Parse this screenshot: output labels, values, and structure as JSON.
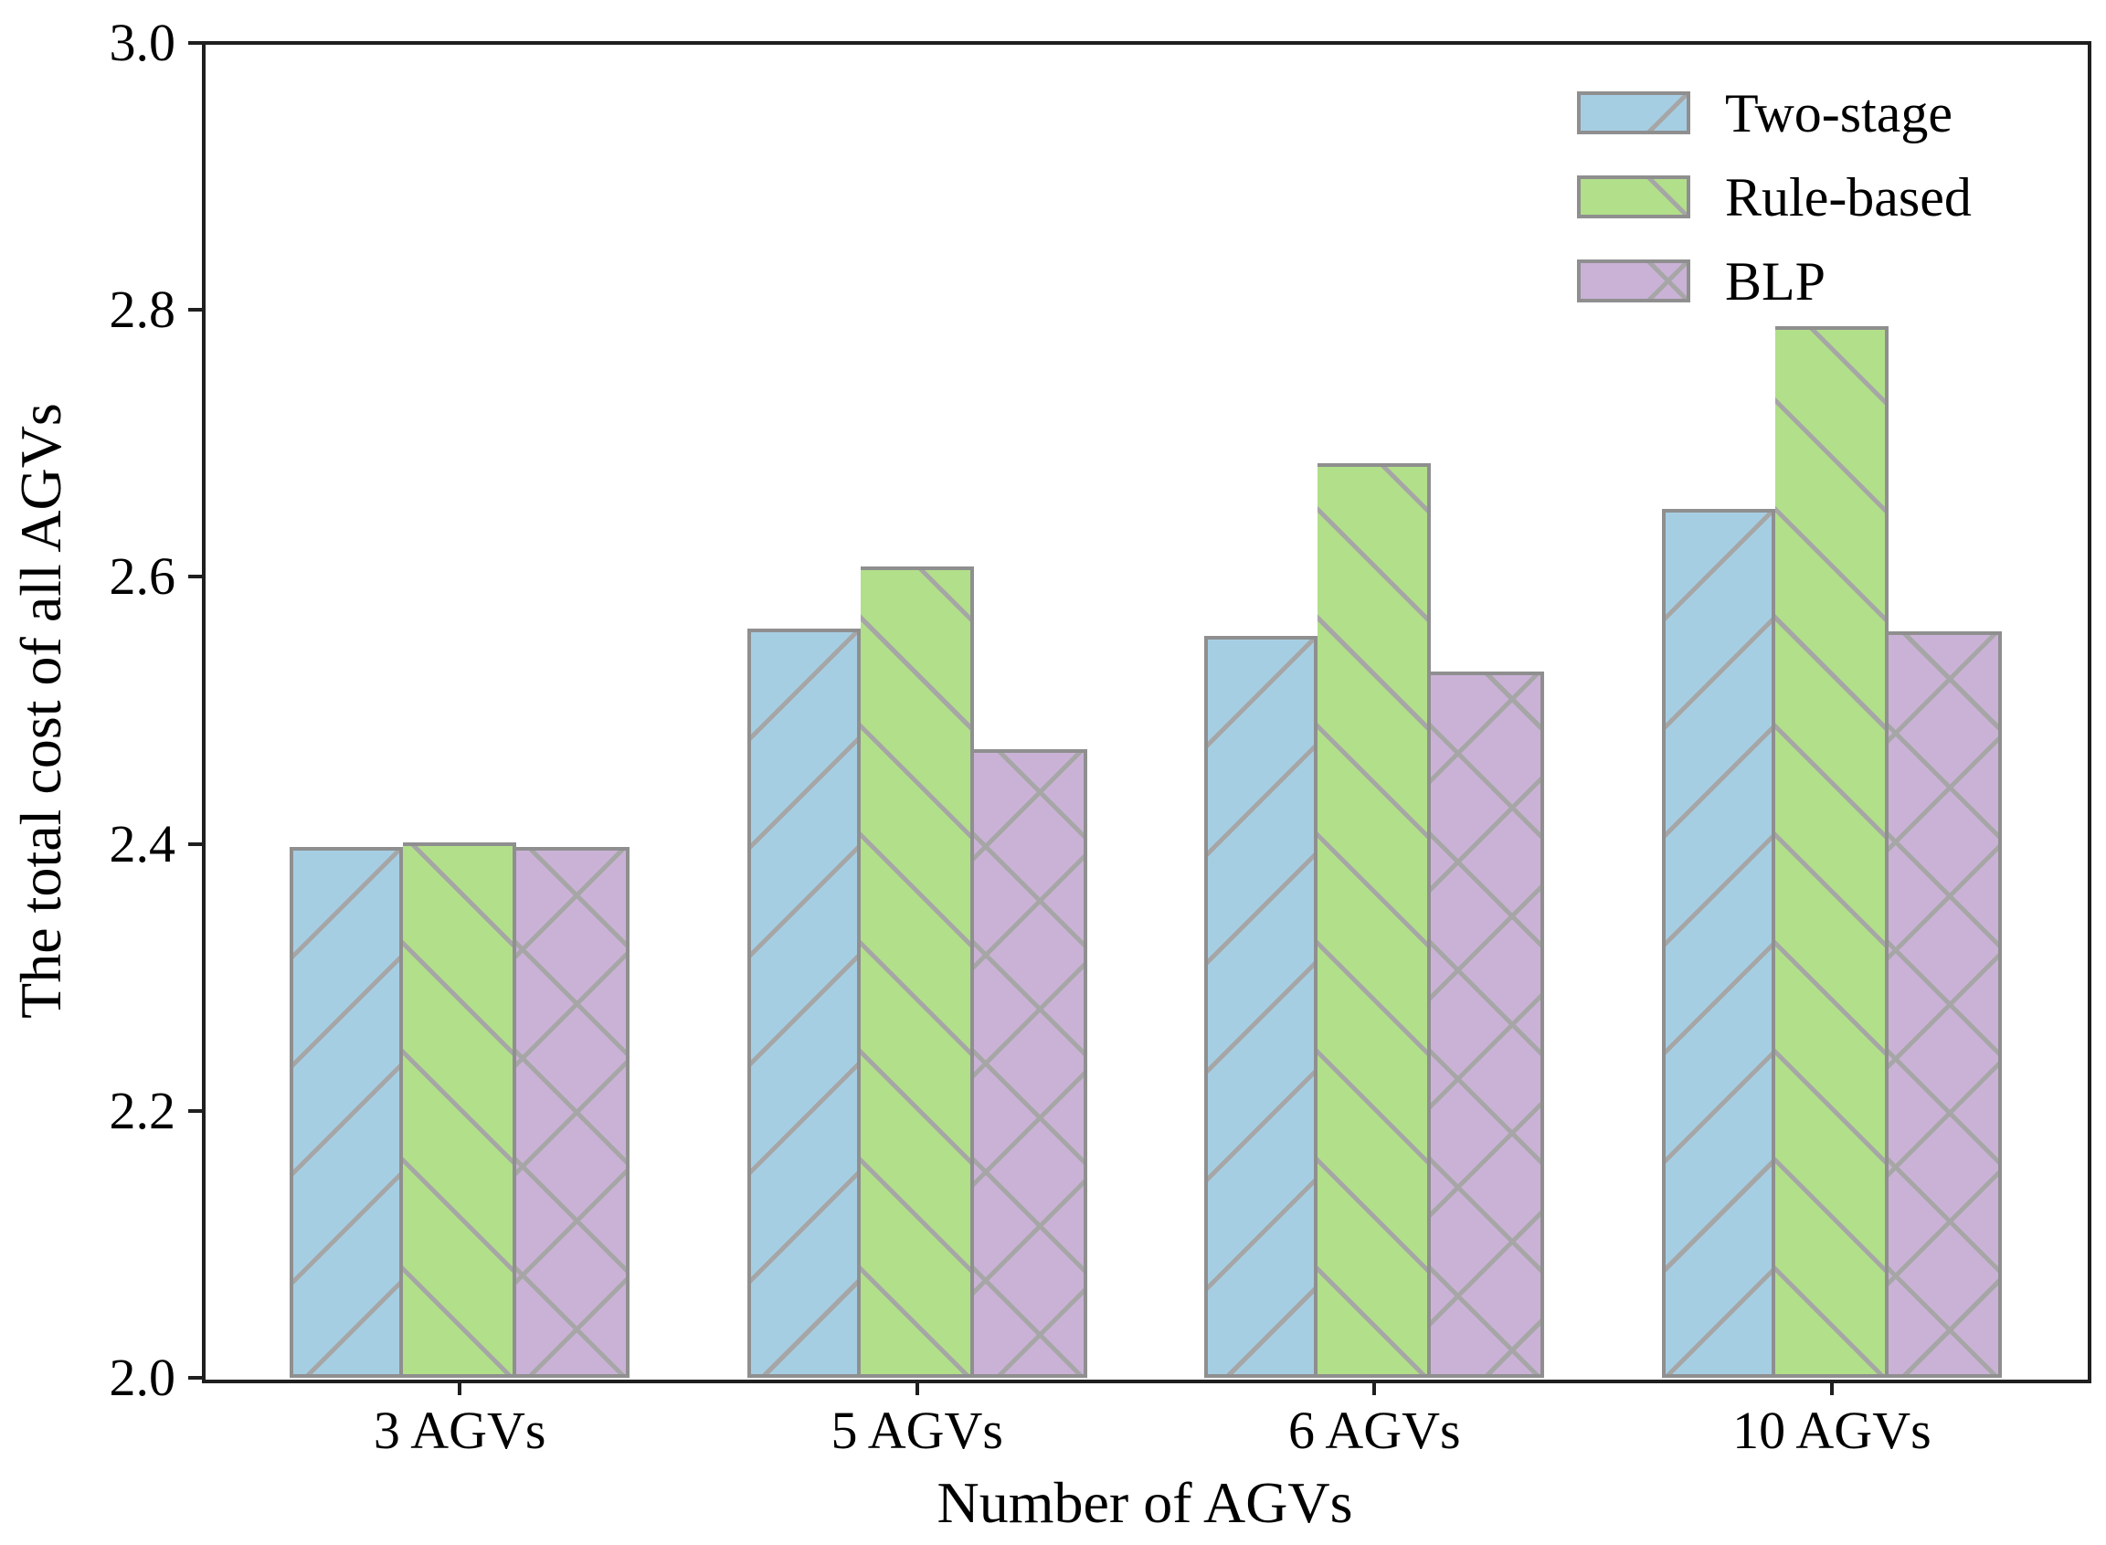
{
  "chart_data": {
    "type": "bar",
    "title": "",
    "categories": [
      "3 AGVs",
      "5 AGVs",
      "6 AGVs",
      "10 AGVs"
    ],
    "series": [
      {
        "name": "Two-stage",
        "color": "#a6cee3",
        "hatch": "/",
        "values": [
          2.398,
          2.561,
          2.556,
          2.651
        ]
      },
      {
        "name": "Rule-based",
        "color": "#b2df8a",
        "hatch": "\\",
        "values": [
          2.401,
          2.608,
          2.685,
          2.788
        ]
      },
      {
        "name": "BLP",
        "color": "#cab2d6",
        "hatch": "x",
        "values": [
          2.398,
          2.471,
          2.529,
          2.559
        ]
      }
    ],
    "xlabel": "Number of AGVs",
    "ylabel": "The total cost of all AGVs",
    "ylim": [
      2.0,
      3.0
    ],
    "yticks": [
      2.0,
      2.2,
      2.4,
      2.6,
      2.8,
      3.0
    ],
    "ytick_format_decimals": 1,
    "legend_position": "upper right",
    "grid": false,
    "colors": {
      "hatch": "#a6a6a6",
      "bar_edge": "#8f8f8f",
      "spine": "#1f1f1f",
      "text": "#000000",
      "background": "#ffffff"
    }
  }
}
